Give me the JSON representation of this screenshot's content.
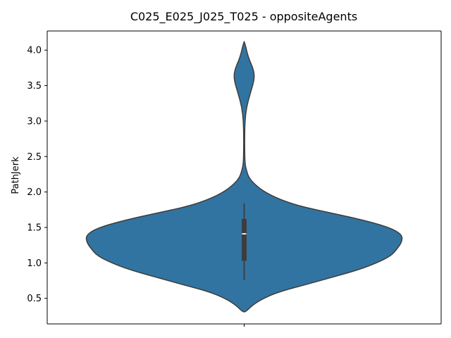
{
  "chart_data": {
    "type": "violin",
    "title": "C025_E025_J025_T025 - oppositeAgents",
    "xlabel": "",
    "ylabel": "PathJerk",
    "x_ticks": [
      ""
    ],
    "y_ticks": [
      "0.5",
      "1.0",
      "1.5",
      "2.0",
      "2.5",
      "3.0",
      "3.5",
      "4.0"
    ],
    "ylim": [
      0.14,
      4.27
    ],
    "grid": false,
    "fill_color": "#3274a1",
    "edge_color": "#3d3d3d",
    "series": [
      {
        "density_profile": [
          [
            0.31,
            0.01
          ],
          [
            0.4,
            0.05
          ],
          [
            0.5,
            0.12
          ],
          [
            0.6,
            0.23
          ],
          [
            0.7,
            0.4
          ],
          [
            0.8,
            0.56
          ],
          [
            0.9,
            0.72
          ],
          [
            1.0,
            0.84
          ],
          [
            1.1,
            0.93
          ],
          [
            1.2,
            0.97
          ],
          [
            1.3,
            1.0
          ],
          [
            1.4,
            1.0
          ],
          [
            1.5,
            0.92
          ],
          [
            1.6,
            0.76
          ],
          [
            1.7,
            0.56
          ],
          [
            1.8,
            0.35
          ],
          [
            1.9,
            0.22
          ],
          [
            2.0,
            0.13
          ],
          [
            2.1,
            0.07
          ],
          [
            2.2,
            0.03
          ],
          [
            2.3,
            0.015
          ],
          [
            2.4,
            0.005
          ],
          [
            2.6,
            0.003
          ],
          [
            2.8,
            0.003
          ],
          [
            3.0,
            0.005
          ],
          [
            3.2,
            0.015
          ],
          [
            3.4,
            0.04
          ],
          [
            3.55,
            0.06
          ],
          [
            3.65,
            0.065
          ],
          [
            3.75,
            0.055
          ],
          [
            3.85,
            0.035
          ],
          [
            3.95,
            0.02
          ],
          [
            4.05,
            0.01
          ],
          [
            4.12,
            0.0
          ]
        ],
        "quartiles": {
          "q1": 1.03,
          "median": 1.41,
          "q3": 1.62
        },
        "whiskers": {
          "low": 0.76,
          "high": 1.84
        }
      }
    ]
  }
}
